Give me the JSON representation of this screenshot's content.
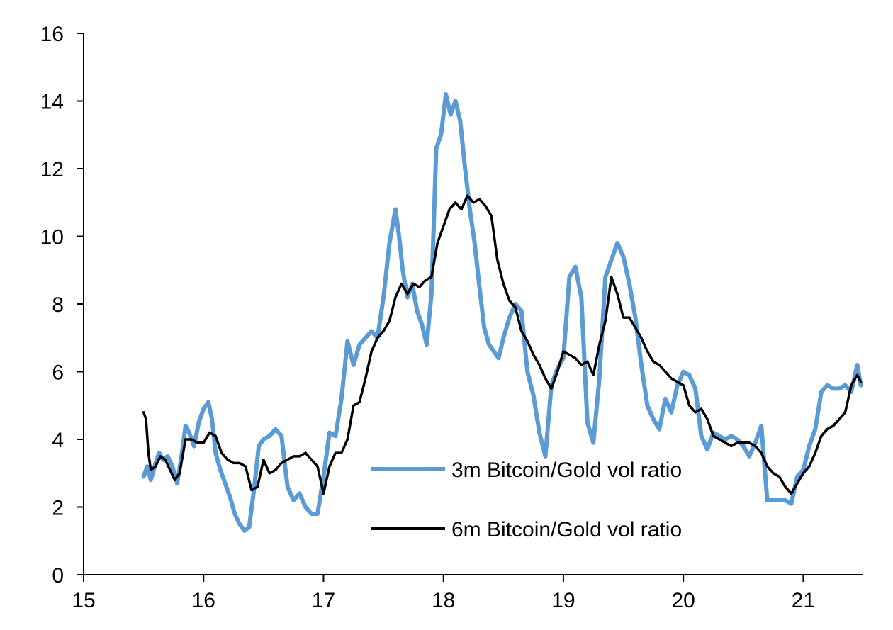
{
  "chart_data": {
    "type": "line",
    "xlim": [
      15,
      21.5
    ],
    "ylim": [
      0,
      16
    ],
    "xticks": [
      15,
      16,
      17,
      18,
      19,
      20,
      21
    ],
    "yticks": [
      0,
      2,
      4,
      6,
      8,
      10,
      12,
      14,
      16
    ],
    "x_tick_labels": [
      "15",
      "16",
      "17",
      "18",
      "19",
      "20",
      "21"
    ],
    "y_tick_labels": [
      "0",
      "2",
      "4",
      "6",
      "8",
      "10",
      "12",
      "14",
      "16"
    ],
    "grid": false,
    "legend_position": "center-right",
    "series": [
      {
        "name": "3m Bitcoin/Gold vol ratio",
        "color": "#5b9bd5",
        "x": [
          15.5,
          15.53,
          15.56,
          15.6,
          15.63,
          15.66,
          15.7,
          15.74,
          15.78,
          15.82,
          15.85,
          15.88,
          15.92,
          15.96,
          16.0,
          16.04,
          16.07,
          16.1,
          16.14,
          16.18,
          16.22,
          16.26,
          16.3,
          16.34,
          16.38,
          16.42,
          16.46,
          16.5,
          16.55,
          16.6,
          16.65,
          16.7,
          16.75,
          16.8,
          16.85,
          16.9,
          16.95,
          17.0,
          17.05,
          17.1,
          17.15,
          17.2,
          17.25,
          17.3,
          17.35,
          17.4,
          17.45,
          17.5,
          17.55,
          17.6,
          17.63,
          17.66,
          17.7,
          17.74,
          17.78,
          17.82,
          17.86,
          17.9,
          17.94,
          17.98,
          18.02,
          18.06,
          18.1,
          18.14,
          18.18,
          18.22,
          18.26,
          18.3,
          18.34,
          18.38,
          18.42,
          18.46,
          18.5,
          18.55,
          18.6,
          18.65,
          18.7,
          18.75,
          18.8,
          18.85,
          18.9,
          18.95,
          19.0,
          19.05,
          19.1,
          19.15,
          19.2,
          19.25,
          19.3,
          19.35,
          19.4,
          19.45,
          19.5,
          19.55,
          19.6,
          19.65,
          19.7,
          19.75,
          19.8,
          19.85,
          19.9,
          19.95,
          20.0,
          20.05,
          20.1,
          20.15,
          20.2,
          20.25,
          20.3,
          20.35,
          20.4,
          20.45,
          20.5,
          20.55,
          20.6,
          20.65,
          20.7,
          20.75,
          20.8,
          20.85,
          20.9,
          20.95,
          21.0,
          21.05,
          21.1,
          21.15,
          21.2,
          21.25,
          21.3,
          21.35,
          21.4,
          21.45,
          21.48
        ],
        "values": [
          2.9,
          3.2,
          2.8,
          3.3,
          3.6,
          3.4,
          3.5,
          3.2,
          2.7,
          3.6,
          4.4,
          4.2,
          3.8,
          4.5,
          4.9,
          5.1,
          4.6,
          3.6,
          3.1,
          2.7,
          2.3,
          1.8,
          1.5,
          1.3,
          1.4,
          2.5,
          3.8,
          4.0,
          4.1,
          4.3,
          4.1,
          2.6,
          2.2,
          2.4,
          2.0,
          1.8,
          1.8,
          2.9,
          4.2,
          4.1,
          5.2,
          6.9,
          6.2,
          6.8,
          7.0,
          7.2,
          7.0,
          8.2,
          9.8,
          10.8,
          10.0,
          9.0,
          8.2,
          8.6,
          7.8,
          7.4,
          6.8,
          8.3,
          12.6,
          13.0,
          14.2,
          13.6,
          14.0,
          13.4,
          12.0,
          10.8,
          9.8,
          8.5,
          7.3,
          6.8,
          6.6,
          6.4,
          7.0,
          7.6,
          8.0,
          7.8,
          6.0,
          5.3,
          4.2,
          3.5,
          5.6,
          6.1,
          6.4,
          8.8,
          9.1,
          8.2,
          4.5,
          3.9,
          5.8,
          8.8,
          9.3,
          9.8,
          9.4,
          8.6,
          7.6,
          6.2,
          5.0,
          4.6,
          4.3,
          5.2,
          4.8,
          5.6,
          6.0,
          5.9,
          5.5,
          4.1,
          3.7,
          4.2,
          4.1,
          4.0,
          4.1,
          4.0,
          3.8,
          3.5,
          3.9,
          4.4,
          2.2,
          2.2,
          2.2,
          2.2,
          2.1,
          2.9,
          3.1,
          3.8,
          4.3,
          5.4,
          5.6,
          5.5,
          5.5,
          5.6,
          5.4,
          6.2,
          5.6
        ]
      },
      {
        "name": "6m Bitcoin/Gold vol ratio",
        "color": "#000000",
        "x": [
          15.5,
          15.52,
          15.54,
          15.56,
          15.6,
          15.64,
          15.68,
          15.72,
          15.76,
          15.8,
          15.85,
          15.9,
          15.95,
          16.0,
          16.05,
          16.1,
          16.15,
          16.2,
          16.25,
          16.3,
          16.35,
          16.4,
          16.45,
          16.5,
          16.55,
          16.6,
          16.65,
          16.7,
          16.75,
          16.8,
          16.85,
          16.9,
          16.95,
          17.0,
          17.05,
          17.1,
          17.15,
          17.2,
          17.25,
          17.3,
          17.35,
          17.4,
          17.45,
          17.5,
          17.55,
          17.6,
          17.65,
          17.7,
          17.75,
          17.8,
          17.85,
          17.9,
          17.95,
          18.0,
          18.05,
          18.1,
          18.15,
          18.2,
          18.25,
          18.3,
          18.35,
          18.4,
          18.45,
          18.5,
          18.55,
          18.6,
          18.65,
          18.7,
          18.75,
          18.8,
          18.85,
          18.9,
          18.95,
          19.0,
          19.05,
          19.1,
          19.15,
          19.2,
          19.25,
          19.3,
          19.35,
          19.4,
          19.45,
          19.5,
          19.55,
          19.6,
          19.65,
          19.7,
          19.75,
          19.8,
          19.85,
          19.9,
          19.95,
          20.0,
          20.05,
          20.1,
          20.15,
          20.2,
          20.25,
          20.3,
          20.35,
          20.4,
          20.45,
          20.5,
          20.55,
          20.6,
          20.65,
          20.7,
          20.75,
          20.8,
          20.85,
          20.9,
          20.95,
          21.0,
          21.05,
          21.1,
          21.15,
          21.2,
          21.25,
          21.3,
          21.35,
          21.4,
          21.45,
          21.48
        ],
        "values": [
          4.8,
          4.6,
          3.6,
          3.1,
          3.2,
          3.5,
          3.4,
          3.1,
          2.8,
          3.0,
          4.0,
          4.0,
          3.9,
          3.9,
          4.2,
          4.1,
          3.6,
          3.4,
          3.3,
          3.3,
          3.2,
          2.5,
          2.6,
          3.4,
          3.0,
          3.1,
          3.3,
          3.4,
          3.5,
          3.5,
          3.6,
          3.4,
          3.2,
          2.4,
          3.2,
          3.6,
          3.6,
          4.0,
          5.0,
          5.1,
          5.8,
          6.6,
          7.0,
          7.2,
          7.5,
          8.2,
          8.6,
          8.3,
          8.6,
          8.5,
          8.7,
          8.8,
          9.8,
          10.3,
          10.8,
          11.0,
          10.8,
          11.2,
          11.0,
          11.1,
          10.9,
          10.6,
          9.3,
          8.6,
          8.1,
          7.9,
          7.2,
          6.9,
          6.5,
          6.2,
          5.8,
          5.5,
          6.0,
          6.6,
          6.5,
          6.4,
          6.2,
          6.3,
          5.9,
          6.8,
          7.5,
          8.8,
          8.3,
          7.6,
          7.6,
          7.3,
          7.0,
          6.6,
          6.3,
          6.2,
          6.0,
          5.8,
          5.7,
          5.6,
          5.0,
          4.8,
          4.9,
          4.6,
          4.1,
          4.0,
          3.9,
          3.8,
          3.9,
          3.9,
          3.9,
          3.8,
          3.6,
          3.2,
          3.0,
          2.9,
          2.6,
          2.4,
          2.7,
          3.0,
          3.2,
          3.6,
          4.1,
          4.3,
          4.4,
          4.6,
          4.8,
          5.6,
          5.9,
          5.7
        ]
      }
    ]
  }
}
